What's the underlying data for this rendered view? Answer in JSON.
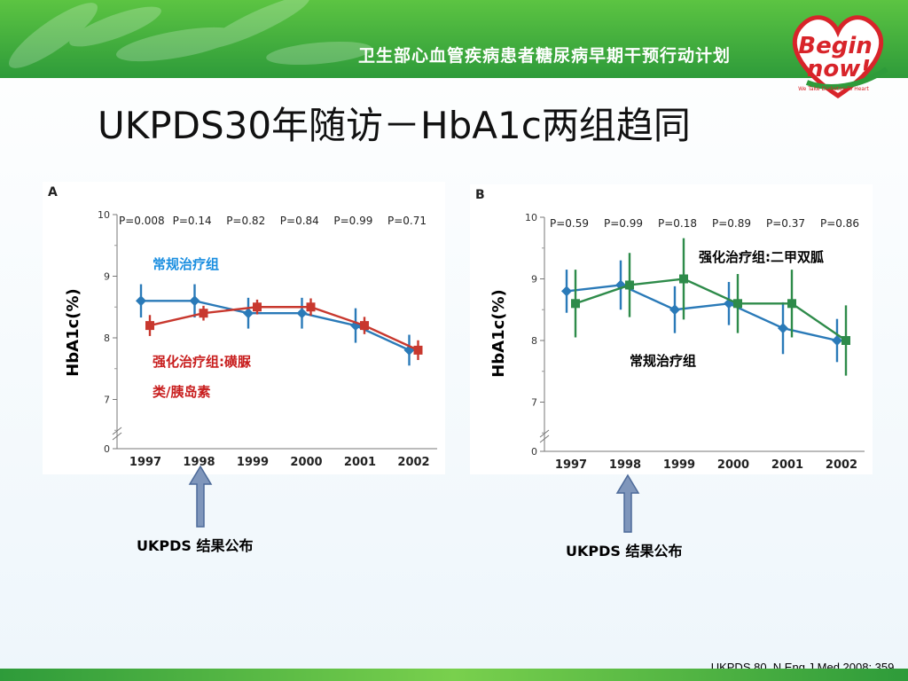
{
  "header": {
    "banner_title": "卫生部心血管疾病患者糖尿病早期干预行动计划",
    "logo_text_1": "Begin",
    "logo_text_2": "now!",
    "logo_tagline": "We Take Diabetes To Heart"
  },
  "slide_title": "UKPDS30年随访－HbA1c两组趋同",
  "colors": {
    "conventional_A": "#2a7ab8",
    "intensive_A": "#c8382e",
    "conventional_B": "#2a7ab8",
    "intensive_B": "#2e8b4a",
    "label_blue": "#1a8ee0",
    "label_red": "#c81e1e"
  },
  "chart_data": [
    {
      "type": "line",
      "panel_label": "A",
      "ylabel": "HbA1c(%)",
      "x": [
        "1997",
        "1998",
        "1999",
        "2000",
        "2001",
        "2002"
      ],
      "yticks": [
        "0",
        "7",
        "8",
        "9",
        "10"
      ],
      "p_values": [
        "P=0.008",
        "P=0.14",
        "P=0.82",
        "P=0.84",
        "P=0.99",
        "P=0.71"
      ],
      "series": [
        {
          "name": "常规治疗组",
          "values": [
            8.6,
            8.6,
            8.4,
            8.4,
            8.2,
            7.8
          ],
          "err": [
            0.27,
            0.27,
            0.25,
            0.25,
            0.28,
            0.25
          ]
        },
        {
          "name": "强化治疗组:磺脲类/胰岛素",
          "values": [
            8.2,
            8.4,
            8.5,
            8.5,
            8.2,
            7.8
          ],
          "err": [
            0.17,
            0.12,
            0.12,
            0.14,
            0.14,
            0.16
          ]
        }
      ],
      "series_label_lines": [
        "常规治疗组",
        "强化治疗组:磺脲",
        "类/胰岛素"
      ]
    },
    {
      "type": "line",
      "panel_label": "B",
      "ylabel": "HbA1c(%)",
      "x": [
        "1997",
        "1998",
        "1999",
        "2000",
        "2001",
        "2002"
      ],
      "yticks": [
        "0",
        "7",
        "8",
        "9",
        "10"
      ],
      "p_values": [
        "P=0.59",
        "P=0.99",
        "P=0.18",
        "P=0.89",
        "P=0.37",
        "P=0.86"
      ],
      "series": [
        {
          "name": "常规治疗组",
          "values": [
            8.8,
            8.9,
            8.5,
            8.6,
            8.2,
            8.0
          ],
          "err": [
            0.35,
            0.4,
            0.38,
            0.35,
            0.42,
            0.35
          ]
        },
        {
          "name": "强化治疗组:二甲双胍",
          "values": [
            8.6,
            8.9,
            9.0,
            8.6,
            8.6,
            8.0
          ],
          "err": [
            0.55,
            0.52,
            0.66,
            0.48,
            0.55,
            0.57
          ]
        }
      ]
    }
  ],
  "arrow_captions": [
    "UKPDS 结果公布",
    "UKPDS 结果公布"
  ],
  "reference": "UKPDS 80. N Eng J Med 2008; 359."
}
